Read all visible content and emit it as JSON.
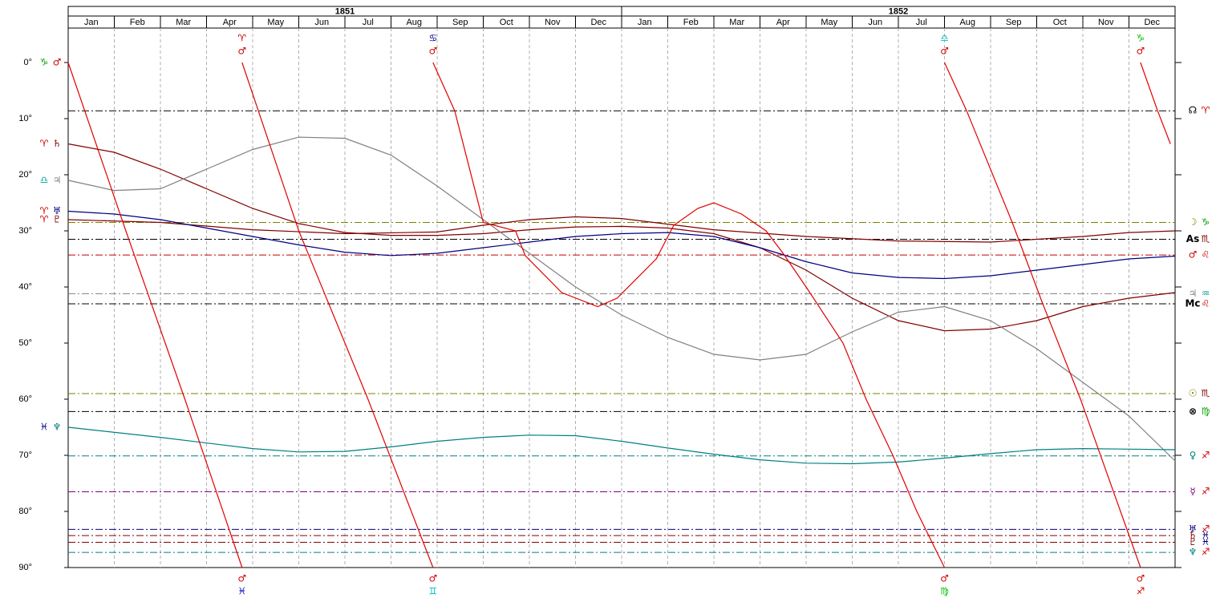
{
  "chart_data": {
    "type": "line",
    "years": [
      "1851",
      "1852"
    ],
    "categories": [
      "Jan",
      "Feb",
      "Mar",
      "Apr",
      "May",
      "Jun",
      "Jul",
      "Aug",
      "Sep",
      "Oct",
      "Nov",
      "Dec",
      "Jan",
      "Feb",
      "Mar",
      "Apr",
      "May",
      "Jun",
      "Jul",
      "Aug",
      "Sep",
      "Oct",
      "Nov",
      "Dec"
    ],
    "xlim": [
      0,
      24
    ],
    "ylim": [
      0,
      90
    ],
    "yticks": [
      {
        "value": 0,
        "label": "0°"
      },
      {
        "value": 10,
        "label": "10°"
      },
      {
        "value": 20,
        "label": "20°"
      },
      {
        "value": 30,
        "label": "30°"
      },
      {
        "value": 40,
        "label": "40°"
      },
      {
        "value": 50,
        "label": "50°"
      },
      {
        "value": 60,
        "label": "60°"
      },
      {
        "value": 70,
        "label": "70°"
      },
      {
        "value": 80,
        "label": "80°"
      },
      {
        "value": 90,
        "label": "90°"
      }
    ],
    "grid": true,
    "reference_lines": [
      {
        "value": 8.6,
        "color": "#000000",
        "glyphs": [
          {
            "text": "☊",
            "color": "#000000"
          },
          {
            "text": "♈",
            "color": "#d00000"
          }
        ]
      },
      {
        "value": 28.5,
        "color": "#808000",
        "glyphs": [
          {
            "text": "☽",
            "color": "#808000"
          },
          {
            "text": "♑",
            "color": "#00a000"
          }
        ]
      },
      {
        "value": 31.5,
        "color": "#000000",
        "glyphs": [
          {
            "text": "As",
            "color": "#000000"
          },
          {
            "text": "♏",
            "color": "#800000"
          }
        ]
      },
      {
        "value": 34.3,
        "color": "#c00000",
        "glyphs": [
          {
            "text": "♂",
            "color": "#d00000"
          },
          {
            "text": "♌",
            "color": "#d00000"
          }
        ]
      },
      {
        "value": 41.2,
        "color": "#808080",
        "glyphs": [
          {
            "text": "♃",
            "color": "#808080"
          },
          {
            "text": "♒",
            "color": "#00a0a0"
          }
        ]
      },
      {
        "value": 43,
        "color": "#000000",
        "glyphs": [
          {
            "text": "Mc",
            "color": "#000000"
          },
          {
            "text": "♌",
            "color": "#d00000"
          }
        ]
      },
      {
        "value": 59,
        "color": "#808000",
        "glyphs": [
          {
            "text": "☉",
            "color": "#808000"
          },
          {
            "text": "♏",
            "color": "#800000"
          }
        ]
      },
      {
        "value": 62.2,
        "color": "#000000",
        "glyphs": [
          {
            "text": "⊗",
            "color": "#000000"
          },
          {
            "text": "♍",
            "color": "#00a000"
          }
        ]
      },
      {
        "value": 70.1,
        "color": "#008080",
        "glyphs": [
          {
            "text": "♀",
            "color": "#008080"
          },
          {
            "text": "♐",
            "color": "#d00000"
          }
        ]
      },
      {
        "value": 76.5,
        "color": "#800080",
        "glyphs": [
          {
            "text": "☿",
            "color": "#800080"
          },
          {
            "text": "♐",
            "color": "#d00000"
          }
        ]
      },
      {
        "value": 83.2,
        "color": "#000080",
        "glyphs": [
          {
            "text": "♅",
            "color": "#000080"
          },
          {
            "text": "♐",
            "color": "#d00000"
          }
        ]
      },
      {
        "value": 84.3,
        "color": "#800000",
        "glyphs": [
          {
            "text": "♄",
            "color": "#800000"
          },
          {
            "text": "♓",
            "color": "#000080"
          }
        ]
      },
      {
        "value": 85.5,
        "color": "#800000",
        "glyphs": [
          {
            "text": "♇",
            "color": "#800000"
          },
          {
            "text": "♓",
            "color": "#000080"
          }
        ]
      },
      {
        "value": 87.3,
        "color": "#008080",
        "glyphs": [
          {
            "text": "♆",
            "color": "#008080"
          },
          {
            "text": "♐",
            "color": "#d00000"
          }
        ]
      }
    ],
    "start_labels": [
      {
        "value": 0,
        "glyphs": [
          {
            "text": "♑",
            "color": "#00a000"
          },
          {
            "text": "♂",
            "color": "#d00000"
          }
        ]
      },
      {
        "value": 14.5,
        "glyphs": [
          {
            "text": "♈",
            "color": "#d00000"
          },
          {
            "text": "♄",
            "color": "#800000"
          }
        ]
      },
      {
        "value": 21,
        "glyphs": [
          {
            "text": "♎",
            "color": "#00a0a0"
          },
          {
            "text": "♃",
            "color": "#808080"
          }
        ]
      },
      {
        "value": 26.5,
        "glyphs": [
          {
            "text": "♈",
            "color": "#d00000"
          },
          {
            "text": "♅",
            "color": "#000080"
          }
        ]
      },
      {
        "value": 28,
        "glyphs": [
          {
            "text": "♈",
            "color": "#d00000"
          },
          {
            "text": "♇",
            "color": "#800000"
          }
        ]
      },
      {
        "value": 65,
        "glyphs": [
          {
            "text": "♓",
            "color": "#000080"
          },
          {
            "text": "♆",
            "color": "#008080"
          }
        ]
      }
    ],
    "annotations": [
      {
        "x": 3.77,
        "position": "top",
        "glyphs": [
          {
            "text": "♈",
            "color": "#d00000"
          },
          {
            "text": "♂",
            "color": "#d00000"
          }
        ]
      },
      {
        "x": 7.91,
        "position": "top",
        "glyphs": [
          {
            "text": "♋",
            "color": "#000080"
          },
          {
            "text": "♂",
            "color": "#d00000"
          }
        ]
      },
      {
        "x": 19.0,
        "position": "top",
        "glyphs": [
          {
            "text": "♎",
            "color": "#00c0c0"
          },
          {
            "text": "♂",
            "color": "#d00000"
          }
        ]
      },
      {
        "x": 23.25,
        "position": "top",
        "glyphs": [
          {
            "text": "♑",
            "color": "#00c000"
          },
          {
            "text": "♂",
            "color": "#d00000"
          }
        ]
      },
      {
        "x": 3.77,
        "position": "bottom",
        "glyphs": [
          {
            "text": "♂",
            "color": "#d00000"
          },
          {
            "text": "♓",
            "color": "#0000c0"
          }
        ]
      },
      {
        "x": 7.91,
        "position": "bottom",
        "glyphs": [
          {
            "text": "♂",
            "color": "#d00000"
          },
          {
            "text": "♊",
            "color": "#00c0c0"
          }
        ]
      },
      {
        "x": 19.0,
        "position": "bottom",
        "glyphs": [
          {
            "text": "♂",
            "color": "#d00000"
          },
          {
            "text": "♍",
            "color": "#00c000"
          }
        ]
      },
      {
        "x": 23.25,
        "position": "bottom",
        "glyphs": [
          {
            "text": "♂",
            "color": "#d00000"
          },
          {
            "text": "♐",
            "color": "#d00000"
          }
        ]
      }
    ],
    "series": [
      {
        "color": "#800000",
        "x": [
          0,
          1,
          2,
          3,
          4,
          5,
          6,
          7,
          8,
          9,
          10,
          11,
          12,
          13,
          14,
          15,
          16,
          17,
          18,
          19,
          20,
          21,
          22,
          23,
          24
        ],
        "values": [
          14.5,
          16,
          19,
          22.5,
          26,
          28.7,
          30.3,
          30.8,
          30.8,
          30.5,
          29.8,
          29.3,
          29.2,
          29.5,
          30.5,
          33,
          37,
          42,
          46,
          47.8,
          47.5,
          46,
          43.5,
          42,
          41
        ]
      },
      {
        "color": "#800000",
        "x": [
          0,
          2,
          4,
          6,
          8,
          9,
          10,
          11,
          12,
          13,
          14,
          16,
          18,
          20,
          22,
          23,
          24
        ],
        "values": [
          28,
          28.5,
          29.8,
          30.5,
          30.2,
          29,
          28,
          27.5,
          27.8,
          28.8,
          29.8,
          31,
          31.8,
          32,
          31,
          30.3,
          30
        ]
      },
      {
        "color": "#000080",
        "x": [
          0,
          1,
          2,
          3,
          4,
          5,
          6,
          7,
          8,
          9,
          10,
          11,
          12,
          13,
          14,
          15,
          16,
          17,
          18,
          19,
          20,
          21,
          22,
          23,
          24
        ],
        "values": [
          26.5,
          27,
          28,
          29.5,
          31,
          32.5,
          33.8,
          34.4,
          34,
          33,
          32,
          31,
          30.5,
          30.3,
          31,
          33,
          35.5,
          37.5,
          38.3,
          38.5,
          38,
          37,
          36,
          35,
          34.5
        ]
      },
      {
        "color": "#808080",
        "x": [
          0,
          1,
          2,
          3,
          4,
          5,
          6,
          7,
          8,
          9,
          10,
          11,
          12,
          13,
          14,
          15,
          16,
          17,
          18,
          19,
          20,
          21,
          22,
          23,
          24
        ],
        "values": [
          21,
          22.8,
          22.5,
          19,
          15.5,
          13.3,
          13.5,
          16.5,
          22,
          28,
          34,
          40,
          45,
          49,
          52,
          53,
          52,
          48,
          44.5,
          43.5,
          46,
          51,
          57,
          63,
          71
        ]
      },
      {
        "color": "#008080",
        "x": [
          0,
          2,
          4,
          5,
          6,
          7,
          8,
          9,
          10,
          11,
          12,
          13,
          14,
          15,
          16,
          17,
          18,
          19,
          20,
          21,
          22,
          23,
          24
        ],
        "values": [
          65,
          66.8,
          68.8,
          69.4,
          69.3,
          68.5,
          67.5,
          66.8,
          66.4,
          66.5,
          67.5,
          68.7,
          69.8,
          70.8,
          71.4,
          71.5,
          71.2,
          70.5,
          69.7,
          69,
          68.8,
          68.9,
          69
        ]
      },
      {
        "color": "#e00000",
        "x": [
          0,
          1.25,
          2.53,
          3.77
        ],
        "values": [
          0,
          30,
          60,
          90
        ]
      },
      {
        "color": "#e00000",
        "x": [
          3.77,
          5.0,
          6.5,
          7.91
        ],
        "values": [
          0,
          30,
          60,
          90
        ]
      },
      {
        "color": "#e00000",
        "x": [
          7.91,
          8.38,
          9.0,
          9.7,
          9.91,
          10.7,
          11.48,
          11.9,
          12.75,
          13.13,
          13.65,
          14.0,
          14.6,
          15.13,
          15.5,
          16.0,
          16.8,
          17.3,
          17.88,
          18.4,
          19.0
        ],
        "values": [
          0,
          8.6,
          28.5,
          30,
          34.4,
          41,
          43.5,
          42,
          35,
          29,
          26,
          25,
          27,
          30,
          34,
          40,
          50,
          60,
          70,
          80,
          90
        ]
      },
      {
        "color": "#e00000",
        "x": [
          19.0,
          19.48,
          20.47,
          21.13,
          21.95,
          23.25
        ],
        "values": [
          0,
          8.6,
          28.5,
          43,
          60,
          90
        ]
      },
      {
        "color": "#e00000",
        "x": [
          23.25,
          23.62,
          23.9
        ],
        "values": [
          0,
          8.6,
          14.5
        ]
      }
    ]
  }
}
